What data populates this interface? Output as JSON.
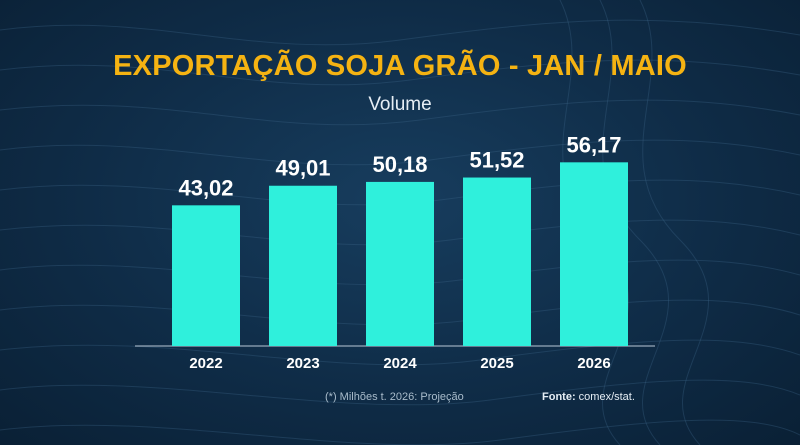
{
  "title": "EXPORTAÇÃO SOJA GRÃO - JAN / MAIO",
  "subtitle": "Volume",
  "footnote": "(*) Milhões t. 2026: Projeção",
  "source_label": "Fonte:",
  "source_value": "comex/stat.",
  "colors": {
    "bar": "#2ff0dc",
    "title": "#f5b312",
    "background": "#0f2c47"
  },
  "chart_data": {
    "type": "bar",
    "title": "EXPORTAÇÃO SOJA GRÃO - JAN / MAIO",
    "subtitle": "Volume",
    "xlabel": "",
    "ylabel": "",
    "categories": [
      "2022",
      "2023",
      "2024",
      "2025",
      "2026"
    ],
    "values": [
      43.02,
      49.01,
      50.18,
      51.52,
      56.17
    ],
    "value_labels": [
      "43,02",
      "49,01",
      "50,18",
      "51,52",
      "56,17"
    ],
    "ylim": [
      0,
      60
    ],
    "grid": false,
    "legend": "none"
  }
}
